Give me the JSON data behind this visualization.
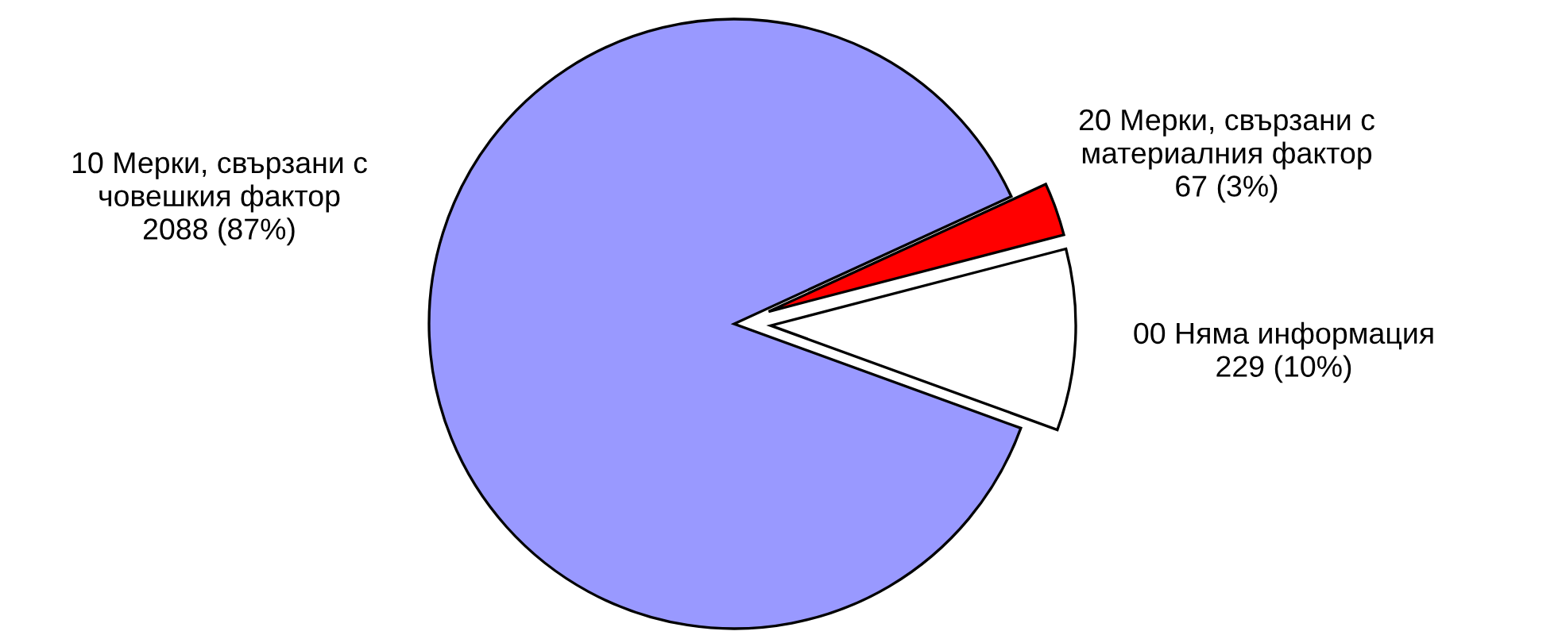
{
  "chart_data": {
    "type": "pie",
    "categories": [
      "00 Няма информация",
      "20 Мерки, свързани с материалния фактор",
      "10 Мерки, свързани с човешкия фактор"
    ],
    "values": [
      229,
      67,
      2088
    ],
    "colors": [
      "#ffffff",
      "#ff0000",
      "#9999ff"
    ],
    "value_labels": [
      "229 (10%)",
      "67 (3%)",
      "2088 (87%)"
    ],
    "legend": false
  }
}
